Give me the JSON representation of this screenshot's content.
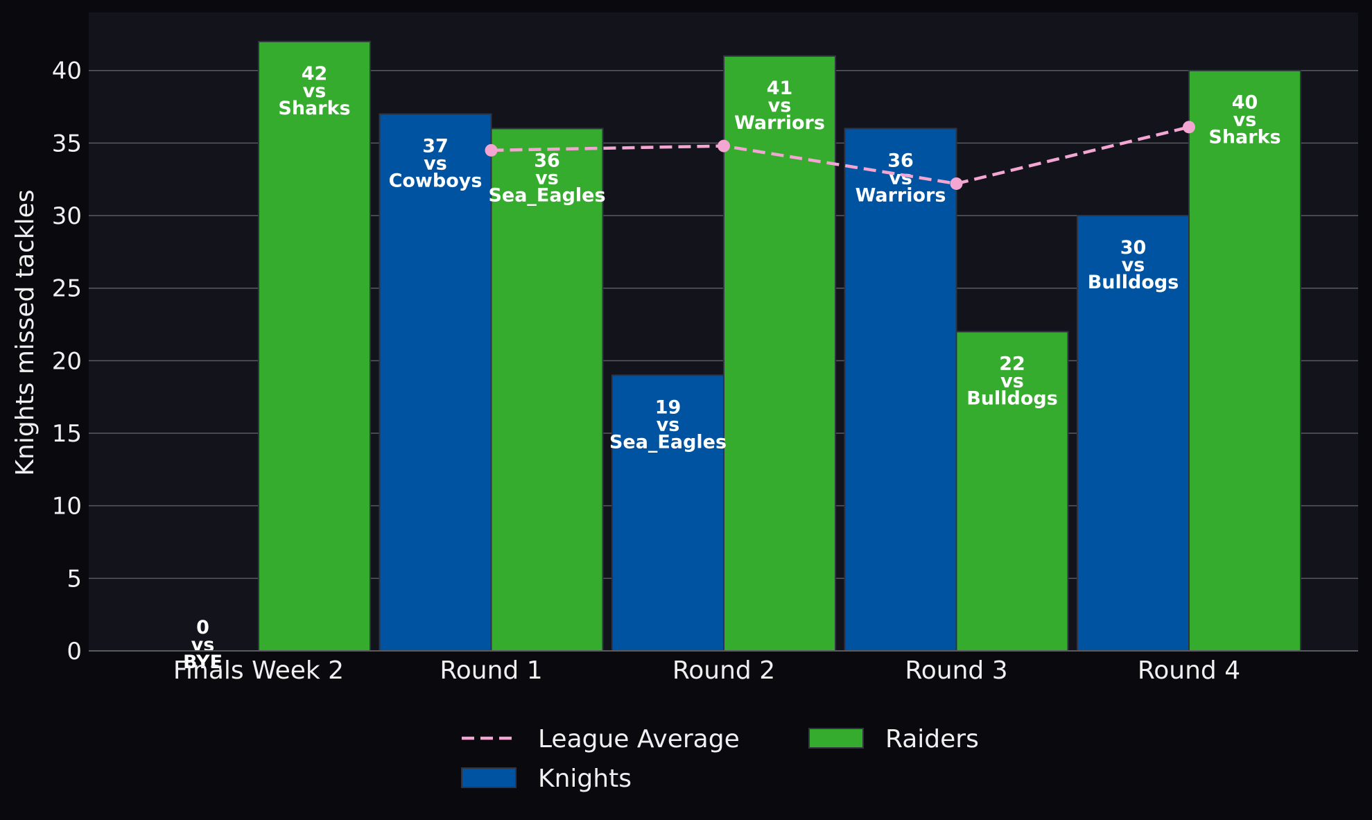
{
  "chart_data": {
    "type": "bar",
    "xlabel": "",
    "ylabel": "Knights missed tackles",
    "ylim": [
      0,
      44
    ],
    "yticks": [
      0,
      5,
      10,
      15,
      20,
      25,
      30,
      35,
      40
    ],
    "grid": "horizontal",
    "legend_position": "bottom-center",
    "categories": [
      "Finals Week 2",
      "Round 1",
      "Round 2",
      "Round 3",
      "Round 4"
    ],
    "series": [
      {
        "name": "Knights",
        "kind": "bar",
        "color": "#0053a0",
        "values": [
          0,
          37,
          19,
          36,
          30
        ],
        "opponents": [
          "BYE",
          "Cowboys",
          "Sea_Eagles",
          "Warriors",
          "Bulldogs"
        ]
      },
      {
        "name": "Raiders",
        "kind": "bar",
        "color": "#36ac2f",
        "values": [
          42,
          36,
          41,
          22,
          40
        ],
        "opponents": [
          "Sharks",
          "Sea_Eagles",
          "Warriors",
          "Bulldogs",
          "Sharks"
        ]
      },
      {
        "name": "League Average",
        "kind": "line",
        "style": "dashed",
        "color": "#f4a6d2",
        "values": [
          null,
          34.5,
          34.8,
          32.2,
          36.1
        ]
      }
    ],
    "vs_label": "vs"
  },
  "colors": {
    "page_background": "#0a0a0e",
    "plot_background": "#12131b",
    "grid": "#5a5a60",
    "text": "#f0f0f0",
    "bar_edge": "#2f3440"
  }
}
